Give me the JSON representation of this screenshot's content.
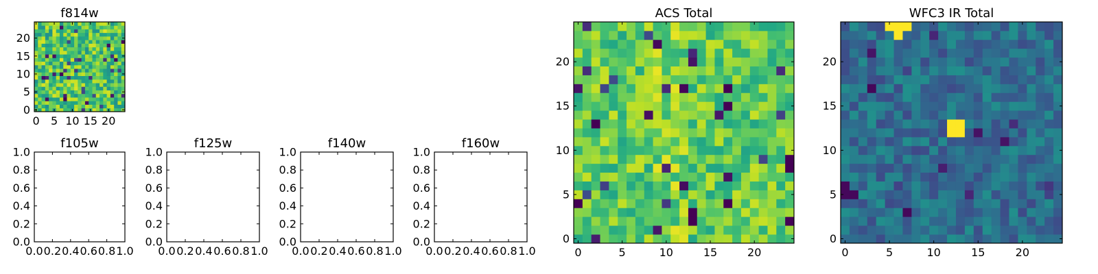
{
  "figure": {
    "colormap": "viridis",
    "colors": {
      "frame": "#000000",
      "text": "#000000",
      "background": "#ffffff"
    }
  },
  "chart_data": [
    {
      "id": "f814w",
      "type": "heatmap",
      "title": "f814w",
      "grid": false,
      "xlim": [
        -0.5,
        24.5
      ],
      "ylim": [
        -0.5,
        24.5
      ],
      "xticks": [
        0,
        5,
        10,
        15,
        20
      ],
      "yticks": [
        0,
        5,
        10,
        15,
        20
      ],
      "size": [
        25,
        25
      ],
      "value_range": [
        0,
        1
      ],
      "cells": "25x25 grid of pixel intensities, mostly mid-to-high (green/yellow) with scattered low (dark) pixels",
      "seed": 814
    },
    {
      "id": "f105w",
      "type": "empty",
      "title": "f105w",
      "xlim": [
        0,
        1
      ],
      "ylim": [
        0,
        1
      ],
      "xticks": [
        "0.0",
        "0.2",
        "0.4",
        "0.6",
        "0.8",
        "1.0"
      ],
      "yticks": [
        "0.0",
        "0.2",
        "0.4",
        "0.6",
        "0.8",
        "1.0"
      ]
    },
    {
      "id": "f125w",
      "type": "empty",
      "title": "f125w",
      "xlim": [
        0,
        1
      ],
      "ylim": [
        0,
        1
      ],
      "xticks": [
        "0.0",
        "0.2",
        "0.4",
        "0.6",
        "0.8",
        "1.0"
      ],
      "yticks": [
        "0.0",
        "0.2",
        "0.4",
        "0.6",
        "0.8",
        "1.0"
      ]
    },
    {
      "id": "f140w",
      "type": "empty",
      "title": "f140w",
      "xlim": [
        0,
        1
      ],
      "ylim": [
        0,
        1
      ],
      "xticks": [
        "0.0",
        "0.2",
        "0.4",
        "0.6",
        "0.8",
        "1.0"
      ],
      "yticks": [
        "0.0",
        "0.2",
        "0.4",
        "0.6",
        "0.8",
        "1.0"
      ]
    },
    {
      "id": "f160w",
      "type": "empty",
      "title": "f160w",
      "xlim": [
        0,
        1
      ],
      "ylim": [
        0,
        1
      ],
      "xticks": [
        "0.0",
        "0.2",
        "0.4",
        "0.6",
        "0.8",
        "1.0"
      ],
      "yticks": [
        "0.0",
        "0.2",
        "0.4",
        "0.6",
        "0.8",
        "1.0"
      ]
    },
    {
      "id": "acs_total",
      "type": "heatmap",
      "title": "ACS Total",
      "grid": false,
      "xlim": [
        -0.5,
        24.5
      ],
      "ylim": [
        -0.5,
        24.5
      ],
      "xticks": [
        0,
        5,
        10,
        15,
        20
      ],
      "yticks": [
        0,
        5,
        10,
        15,
        20
      ],
      "size": [
        25,
        25
      ],
      "value_range": [
        0,
        1
      ],
      "cells": "25x25 grid, mostly green/yellow-green with brighter yellow column near x=10-12 and isolated dark pixels",
      "seed": 2016,
      "low_points": [
        [
          17,
          17
        ],
        [
          17,
          15
        ],
        [
          2,
          13
        ],
        [
          0,
          4
        ],
        [
          24,
          8
        ],
        [
          13,
          3
        ],
        [
          13,
          2
        ],
        [
          17,
          4
        ]
      ]
    },
    {
      "id": "wfc3_ir_total",
      "type": "heatmap",
      "title": "WFC3 IR Total",
      "grid": false,
      "xlim": [
        -0.5,
        24.5
      ],
      "ylim": [
        -0.5,
        24.5
      ],
      "xticks": [
        0,
        5,
        10,
        15,
        20
      ],
      "yticks": [
        0,
        5,
        10,
        15,
        20
      ],
      "size": [
        25,
        25
      ],
      "value_range": [
        0,
        1
      ],
      "cells": "25x25 grid, mostly blue/teal (low-mid) with bright yellow source near (12,12) and near the top at x=5-7",
      "seed": 3160,
      "high_points": [
        [
          12,
          12
        ],
        [
          13,
          12
        ],
        [
          12,
          13
        ],
        [
          13,
          13
        ],
        [
          5,
          24
        ],
        [
          6,
          24
        ],
        [
          7,
          24
        ],
        [
          6,
          23
        ]
      ]
    }
  ]
}
